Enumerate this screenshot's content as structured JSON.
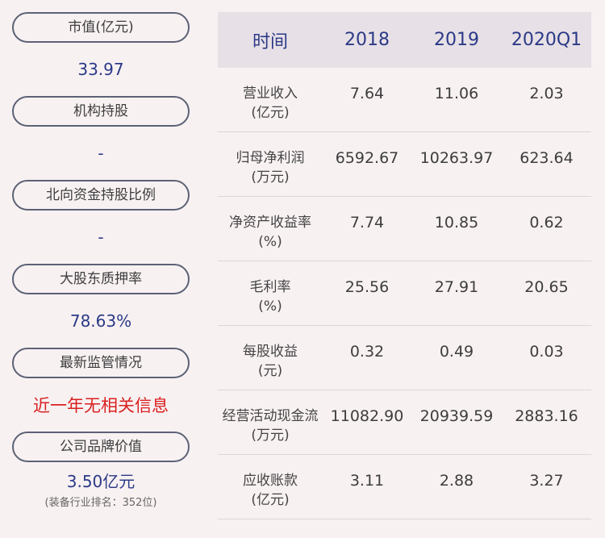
{
  "left_panel": {
    "items": [
      {
        "label": "市值(亿元)",
        "value": "33.97"
      },
      {
        "label": "机构持股",
        "value": "-"
      },
      {
        "label": "北向资金持股比例",
        "value": "-"
      },
      {
        "label": "大股东质押率",
        "value": "78.63%"
      },
      {
        "label": "最新监管情况",
        "value": "近一年无相关信息"
      },
      {
        "label": "公司品牌价值",
        "value": "3.50亿元",
        "sub": "(装备行业排名：352位)"
      }
    ]
  },
  "table": {
    "headers": [
      "时间",
      "2018",
      "2019",
      "2020Q1"
    ],
    "rows": [
      {
        "name": "营业收入",
        "unit": "(亿元)",
        "values": [
          "7.64",
          "11.06",
          "2.03"
        ]
      },
      {
        "name": "归母净利润",
        "unit": "(万元)",
        "values": [
          "6592.67",
          "10263.97",
          "623.64"
        ]
      },
      {
        "name": "净资产收益率",
        "unit": "(%)",
        "values": [
          "7.74",
          "10.85",
          "0.62"
        ]
      },
      {
        "name": "毛利率",
        "unit": "(%)",
        "values": [
          "25.56",
          "27.91",
          "20.65"
        ]
      },
      {
        "name": "每股收益",
        "unit": "(元)",
        "values": [
          "0.32",
          "0.49",
          "0.03"
        ]
      },
      {
        "name": "经营活动现金流",
        "unit": "(万元)",
        "values": [
          "11082.90",
          "20939.59",
          "2883.16"
        ]
      },
      {
        "name": "应收账款",
        "unit": "(亿元)",
        "values": [
          "3.11",
          "2.88",
          "3.27"
        ]
      }
    ]
  },
  "colors": {
    "accent": "#2b3a87",
    "alert": "#d92121",
    "header_bg": "#e7e0e6",
    "page_bg": "#f8f1f2"
  }
}
